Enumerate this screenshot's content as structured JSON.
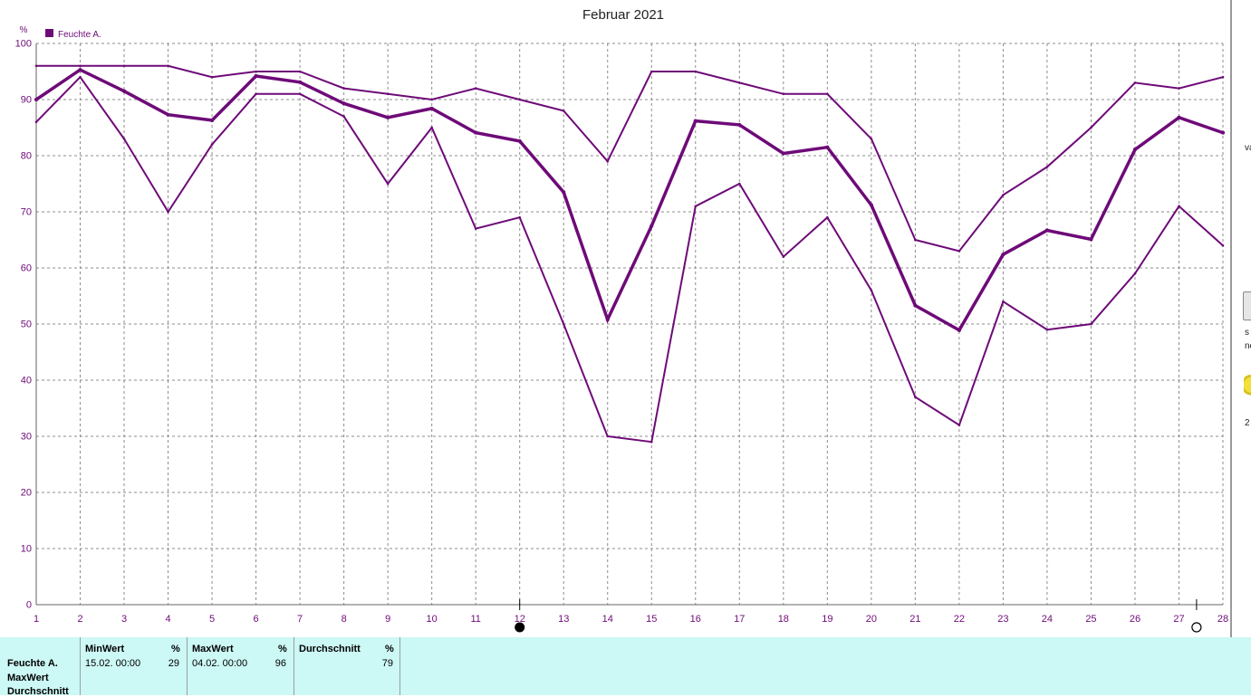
{
  "chart_data": {
    "type": "line",
    "title": "Februar 2021",
    "ylabel": "%",
    "xlabel": "",
    "x": [
      1,
      2,
      3,
      4,
      5,
      6,
      7,
      8,
      9,
      10,
      11,
      12,
      13,
      14,
      15,
      16,
      17,
      18,
      19,
      20,
      21,
      22,
      23,
      24,
      25,
      26,
      27,
      28
    ],
    "xlim": [
      1,
      28
    ],
    "ylim": [
      0,
      100
    ],
    "yticks": [
      0,
      10,
      20,
      30,
      40,
      50,
      60,
      70,
      80,
      90,
      100
    ],
    "grid": true,
    "legend": [
      {
        "label": "Feuchte A.",
        "color": "#6e0a78",
        "position": "top-left"
      }
    ],
    "series": [
      {
        "values": [
          96,
          96,
          96,
          96,
          94,
          95,
          95,
          92,
          91,
          90,
          92,
          90,
          88,
          79,
          95,
          95,
          93,
          91,
          91,
          83,
          65,
          63,
          73,
          78,
          85,
          93,
          92,
          94
        ],
        "width": 2
      },
      {
        "values": [
          90,
          95.3,
          91.5,
          87.3,
          86.3,
          94.2,
          93.1,
          89.3,
          86.8,
          88.4,
          84.1,
          82.6,
          73.5,
          50.8,
          67.5,
          86.2,
          85.5,
          80.4,
          81.5,
          71.2,
          53.3,
          48.9,
          62.4,
          66.7,
          65.1,
          81.1,
          86.8,
          84.1
        ],
        "width": 3.5
      },
      {
        "values": [
          86,
          94,
          83,
          70,
          82,
          91,
          91,
          87,
          75,
          85,
          67,
          69,
          50,
          30,
          29,
          71,
          75,
          62,
          69,
          56,
          37,
          32,
          54,
          49,
          50,
          59,
          71,
          64
        ],
        "width": 2
      }
    ],
    "moon_markers": [
      {
        "x": 12,
        "symbol": "new-moon"
      },
      {
        "x": 27.4,
        "symbol": "full-moon"
      }
    ]
  },
  "table": {
    "row_labels": [
      "Feuchte A.",
      "MaxWert",
      "Durchschnitt"
    ],
    "min": {
      "header": "MinWert",
      "unit": "%",
      "date": "15.02.  00:00",
      "value": "29"
    },
    "max": {
      "header": "MaxWert",
      "unit": "%",
      "date": "04.02.  00:00",
      "value": "96"
    },
    "avg": {
      "header": "Durchschnitt",
      "unit": "%",
      "value": "79"
    }
  },
  "right_strip": {
    "fragments": [
      "va",
      "s",
      "ne",
      "2"
    ]
  },
  "colors": {
    "line": "#6e0a78",
    "grid": "#8c8c8c",
    "table_bg": "#ccf8f5",
    "axis_text": "#6e0a78"
  }
}
